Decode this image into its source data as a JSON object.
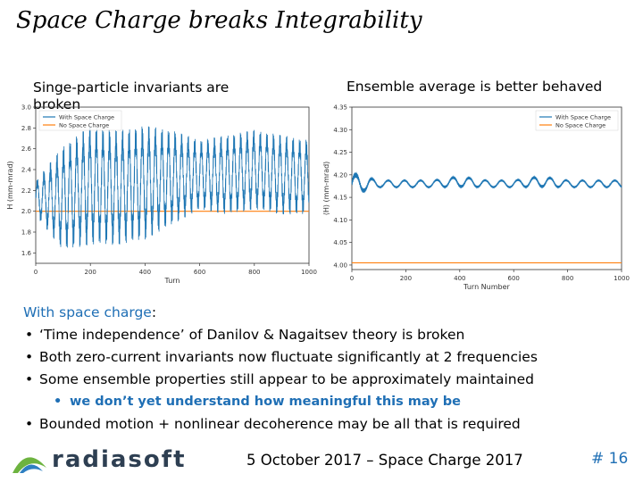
{
  "slide": {
    "title": "Space Charge breaks Integrability",
    "left_caption": "Singe-particle invariants are broken",
    "right_caption": "Ensemble average is better behaved"
  },
  "chart_data": [
    {
      "type": "line",
      "xlabel": "Turn",
      "ylabel": "H (mm-mrad)",
      "xlim": [
        0,
        1000
      ],
      "ylim": [
        1.5,
        3.0
      ],
      "xticks": [
        "0",
        "200",
        "400",
        "600",
        "800",
        "1000"
      ],
      "yticks": [
        "1.6",
        "1.8",
        "2.0",
        "2.2",
        "2.4",
        "2.6",
        "2.8",
        "3.0"
      ],
      "legend": "top-left",
      "series": [
        {
          "name": "With Space Charge",
          "color": "#1f77b4",
          "envelope": {
            "x": [
              0,
              100,
              200,
              300,
              400,
              500,
              600,
              700,
              800,
              900,
              1000
            ],
            "max": [
              2.3,
              2.65,
              2.85,
              2.8,
              2.85,
              2.8,
              2.7,
              2.75,
              2.8,
              2.75,
              2.7
            ],
            "min": [
              1.95,
              1.6,
              1.65,
              1.65,
              1.7,
              1.85,
              2.0,
              1.95,
              2.0,
              1.95,
              1.95
            ]
          }
        },
        {
          "name": "No Space Charge",
          "color": "#ff7f0e",
          "values": [
            2.0
          ]
        }
      ]
    },
    {
      "type": "line",
      "xlabel": "Turn Number",
      "ylabel": "⟨H⟩ (mm-mrad)",
      "xlim": [
        0,
        1000
      ],
      "ylim": [
        3.99,
        4.35
      ],
      "xticks": [
        "0",
        "200",
        "400",
        "600",
        "800",
        "1000"
      ],
      "yticks": [
        "4.00",
        "4.05",
        "4.10",
        "4.15",
        "4.20",
        "4.25",
        "4.30",
        "4.35"
      ],
      "legend": "top-right",
      "series": [
        {
          "name": "With Space Charge",
          "color": "#1f77b4",
          "envelope": {
            "x": [
              0,
              100,
              200,
              300,
              400,
              500,
              600,
              700,
              800,
              900,
              1000
            ],
            "max": [
              4.21,
              4.19,
              4.19,
              4.19,
              4.2,
              4.19,
              4.19,
              4.2,
              4.19,
              4.19,
              4.19
            ],
            "min": [
              4.15,
              4.17,
              4.17,
              4.17,
              4.17,
              4.17,
              4.17,
              4.17,
              4.17,
              4.17,
              4.17
            ]
          }
        },
        {
          "name": "No Space Charge",
          "color": "#ff7f0e",
          "values": [
            4.005
          ]
        }
      ]
    }
  ],
  "bullets": {
    "heading": "With space charge",
    "heading_colon": ":",
    "dot": "•",
    "items": [
      "‘Time independence’ of Danilov & Nagaitsev theory is broken",
      "Both zero-current invariants now fluctuate significantly at 2 frequencies",
      "Some ensemble properties still appear to be approximately maintained"
    ],
    "sub_item": "we don’t yet understand how meaningful this may be",
    "last_item": "Bounded motion + nonlinear decoherence may be all that is required"
  },
  "footer": {
    "logo_text": "radiasoft",
    "date": "5 October 2017 – Space Charge 2017",
    "page_number": "# 16"
  },
  "colors": {
    "accent": "#1f6fb5",
    "logo_green": "#6db33f",
    "logo_blue": "#2e3f52"
  }
}
